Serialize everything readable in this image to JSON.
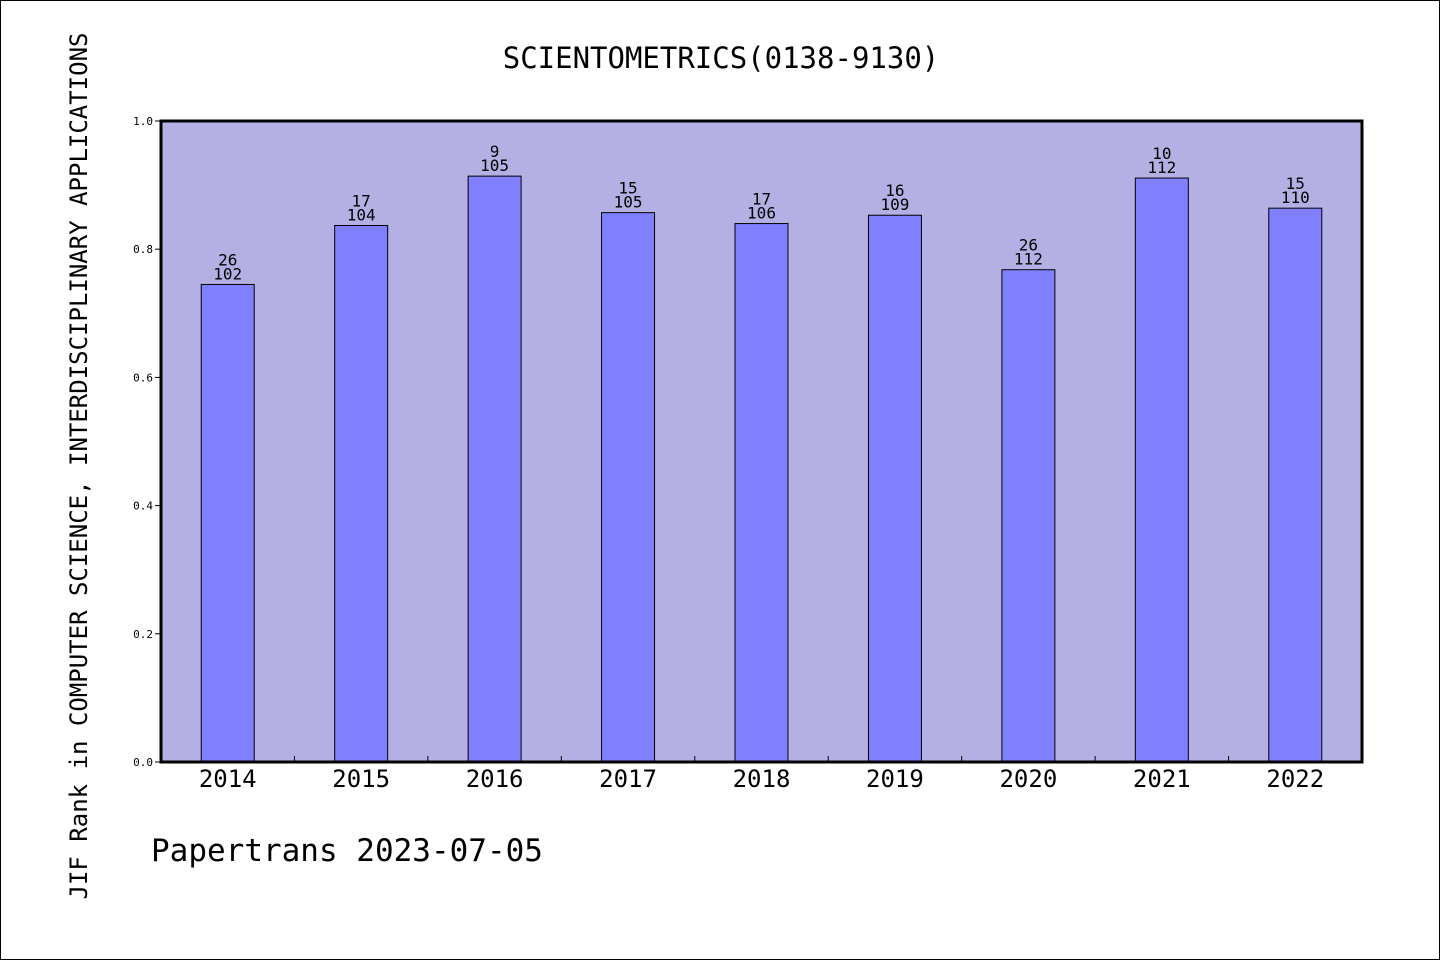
{
  "colors": {
    "plot_background": "#b5b0e3",
    "bar_fill": "#8080ff",
    "axis": "#000000",
    "page_background": "#ffffff"
  },
  "chart_data": {
    "type": "bar",
    "title": "SCIENTOMETRICS(0138-9130)",
    "ylabel": "JIF Rank in COMPUTER SCIENCE, INTERDISCIPLINARY APPLICATIONS",
    "xlabel": "",
    "categories": [
      "2014",
      "2015",
      "2016",
      "2017",
      "2018",
      "2019",
      "2020",
      "2021",
      "2022"
    ],
    "values": [
      0.745,
      0.837,
      0.914,
      0.857,
      0.84,
      0.853,
      0.768,
      0.911,
      0.864
    ],
    "rank": [
      "26",
      "17",
      "9",
      "15",
      "17",
      "16",
      "26",
      "10",
      "15"
    ],
    "total": [
      "102",
      "104",
      "105",
      "105",
      "106",
      "109",
      "112",
      "112",
      "110"
    ],
    "ylim": [
      0,
      1
    ],
    "yticks": [
      "0.0",
      "0.2",
      "0.4",
      "0.6",
      "0.8",
      "1.0"
    ],
    "grid": false,
    "legend": "none"
  },
  "footer": "Papertrans 2023-07-05"
}
